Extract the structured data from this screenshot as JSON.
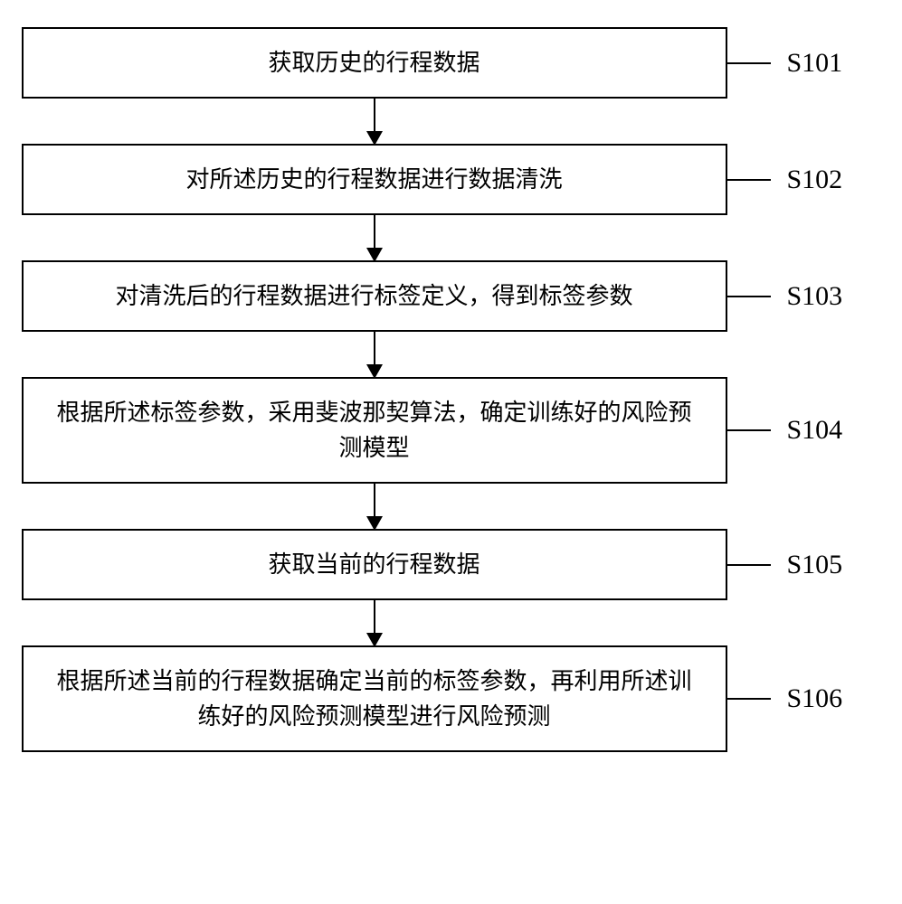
{
  "flowchart": {
    "type": "flowchart",
    "background_color": "#ffffff",
    "border_color": "#000000",
    "border_width": 2,
    "text_color": "#000000",
    "box_fontsize": 26,
    "label_fontsize": 30,
    "arrow_head_size": 16,
    "connector_length": 50,
    "arrow_length": 50,
    "steps": [
      {
        "id": "s101",
        "label": "S101",
        "text": "获取历史的行程数据",
        "height_class": "short"
      },
      {
        "id": "s102",
        "label": "S102",
        "text": "对所述历史的行程数据进行数据清洗",
        "height_class": "short"
      },
      {
        "id": "s103",
        "label": "S103",
        "text": "对清洗后的行程数据进行标签定义，得到标签参数",
        "height_class": "short"
      },
      {
        "id": "s104",
        "label": "S104",
        "text": "根据所述标签参数，采用斐波那契算法，确定训练好的风险预测模型",
        "height_class": "tall"
      },
      {
        "id": "s105",
        "label": "S105",
        "text": "获取当前的行程数据",
        "height_class": "short"
      },
      {
        "id": "s106",
        "label": "S106",
        "text": "根据所述当前的行程数据确定当前的标签参数，再利用所述训练好的风险预测模型进行风险预测",
        "height_class": "tall"
      }
    ]
  }
}
